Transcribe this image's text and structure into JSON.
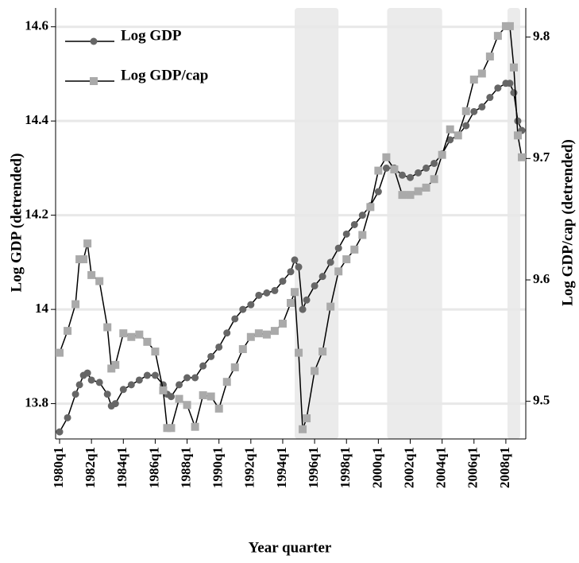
{
  "chart_data": {
    "type": "line",
    "y_label": "Log GDP (detrended)",
    "y2_label": "Log GDP/cap (detrended)",
    "x_label": "Year quarter",
    "x": [
      1980,
      1980.5,
      1981,
      1981.25,
      1981.5,
      1981.75,
      1982,
      1982.5,
      1983,
      1983.25,
      1983.5,
      1984,
      1984.5,
      1985,
      1985.5,
      1986,
      1986.5,
      1986.75,
      1987,
      1987.5,
      1988,
      1988.5,
      1989,
      1989.5,
      1990,
      1990.5,
      1991,
      1991.5,
      1992,
      1992.5,
      1993,
      1993.5,
      1994,
      1994.5,
      1994.75,
      1995,
      1995.25,
      1995.5,
      1996,
      1996.5,
      1997,
      1997.5,
      1998,
      1998.5,
      1999,
      1999.5,
      2000,
      2000.5,
      2001,
      2001.5,
      2002,
      2002.5,
      2003,
      2003.5,
      2004,
      2004.5,
      2005,
      2005.5,
      2006,
      2006.5,
      2007,
      2007.5,
      2008,
      2008.25,
      2008.5,
      2008.75,
      2009
    ],
    "series": [
      {
        "name": "Log GDP",
        "color": "#666666",
        "line_color": "#000000",
        "marker": "circle",
        "values": [
          13.74,
          13.77,
          13.82,
          13.84,
          13.86,
          13.865,
          13.85,
          13.845,
          13.82,
          13.795,
          13.8,
          13.83,
          13.84,
          13.85,
          13.86,
          13.86,
          13.84,
          13.82,
          13.815,
          13.84,
          13.855,
          13.855,
          13.88,
          13.9,
          13.92,
          13.95,
          13.98,
          14.0,
          14.01,
          14.03,
          14.035,
          14.04,
          14.06,
          14.08,
          14.105,
          14.09,
          14.0,
          14.02,
          14.05,
          14.07,
          14.1,
          14.13,
          14.16,
          14.18,
          14.2,
          14.22,
          14.25,
          14.3,
          14.3,
          14.285,
          14.28,
          14.29,
          14.3,
          14.31,
          14.33,
          14.36,
          14.37,
          14.39,
          14.42,
          14.43,
          14.45,
          14.47,
          14.48,
          14.48,
          14.46,
          14.4,
          14.38
        ]
      },
      {
        "name": "Log GDP/cap",
        "color": "#aaaaaa",
        "line_color": "#000000",
        "marker": "square",
        "axis": "y2",
        "values": [
          9.54,
          9.558,
          9.58,
          9.617,
          9.617,
          9.63,
          9.604,
          9.599,
          9.561,
          9.527,
          9.53,
          9.556,
          9.553,
          9.555,
          9.549,
          9.541,
          9.509,
          9.478,
          9.478,
          9.502,
          9.497,
          9.479,
          9.505,
          9.504,
          9.494,
          9.516,
          9.528,
          9.543,
          9.553,
          9.556,
          9.555,
          9.558,
          9.564,
          9.581,
          9.59,
          9.54,
          9.477,
          9.486,
          9.525,
          9.541,
          9.578,
          9.607,
          9.617,
          9.625,
          9.637,
          9.66,
          9.69,
          9.701,
          9.691,
          9.67,
          9.67,
          9.673,
          9.676,
          9.683,
          9.703,
          9.724,
          9.719,
          9.739,
          9.765,
          9.77,
          9.784,
          9.801,
          9.809,
          9.809,
          9.775,
          9.719,
          9.701
        ]
      }
    ],
    "shaded_regions": [
      [
        1994.75,
        1997.5
      ],
      [
        2000.55,
        2004.0
      ],
      [
        2008.1,
        2008.9
      ]
    ],
    "shade_color": "#ebebeb",
    "xlim": [
      1979.75,
      2009.25
    ],
    "xticks": [
      {
        "value": 1980,
        "label": "1980q1"
      },
      {
        "value": 1982,
        "label": "1982q1"
      },
      {
        "value": 1984,
        "label": "1984q1"
      },
      {
        "value": 1986,
        "label": "1986q1"
      },
      {
        "value": 1988,
        "label": "1988q1"
      },
      {
        "value": 1990,
        "label": "1990q1"
      },
      {
        "value": 1992,
        "label": "1992q1"
      },
      {
        "value": 1994,
        "label": "1994q1"
      },
      {
        "value": 1996,
        "label": "1996q1"
      },
      {
        "value": 1998,
        "label": "1998q1"
      },
      {
        "value": 2000,
        "label": "2000q1"
      },
      {
        "value": 2002,
        "label": "2002q1"
      },
      {
        "value": 2004,
        "label": "2004q1"
      },
      {
        "value": 2006,
        "label": "2006q1"
      },
      {
        "value": 2008,
        "label": "2008q1"
      }
    ],
    "ylim": [
      13.725,
      14.64
    ],
    "yticks": [
      13.8,
      14,
      14.2,
      14.4,
      14.6
    ],
    "y2lim": [
      9.469,
      9.824
    ],
    "y2ticks": [
      9.5,
      9.6,
      9.7,
      9.8
    ],
    "grid": true,
    "legend": "top-left"
  }
}
